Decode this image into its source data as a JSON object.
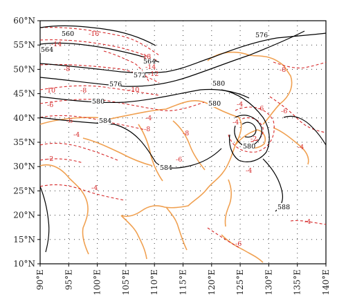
{
  "map": {
    "lat_ticks": [
      "60°N",
      "55°N",
      "50°N",
      "45°N",
      "40°N",
      "35°N",
      "30°N",
      "25°N",
      "20°N",
      "15°N",
      "10°N"
    ],
    "lon_ticks": [
      "90°E",
      "95°E",
      "100°E",
      "105°E",
      "110°E",
      "115°E",
      "120°E",
      "125°E",
      "130°E",
      "135°E",
      "140°E"
    ]
  },
  "colors": {
    "geopotential": "#000000",
    "temperature": "#d62728",
    "coastline": "#f0a050",
    "grid": "#333333"
  },
  "contour_labels": {
    "black": [
      "560",
      "564",
      "564",
      "572",
      "576",
      "576",
      "580",
      "580",
      "580",
      "584",
      "584",
      "580",
      "588"
    ],
    "red": [
      "-16",
      "-14",
      "-18",
      "-14",
      "-12",
      "-10",
      "-8",
      "-6",
      "-8",
      "-4",
      "-6",
      "-4",
      "-2",
      "-4",
      "-6",
      "-2",
      "-4",
      "-4",
      "-4",
      "-6",
      "-4",
      "-6",
      "-8",
      "10",
      "-8",
      "-6",
      "-8",
      "-4"
    ]
  }
}
